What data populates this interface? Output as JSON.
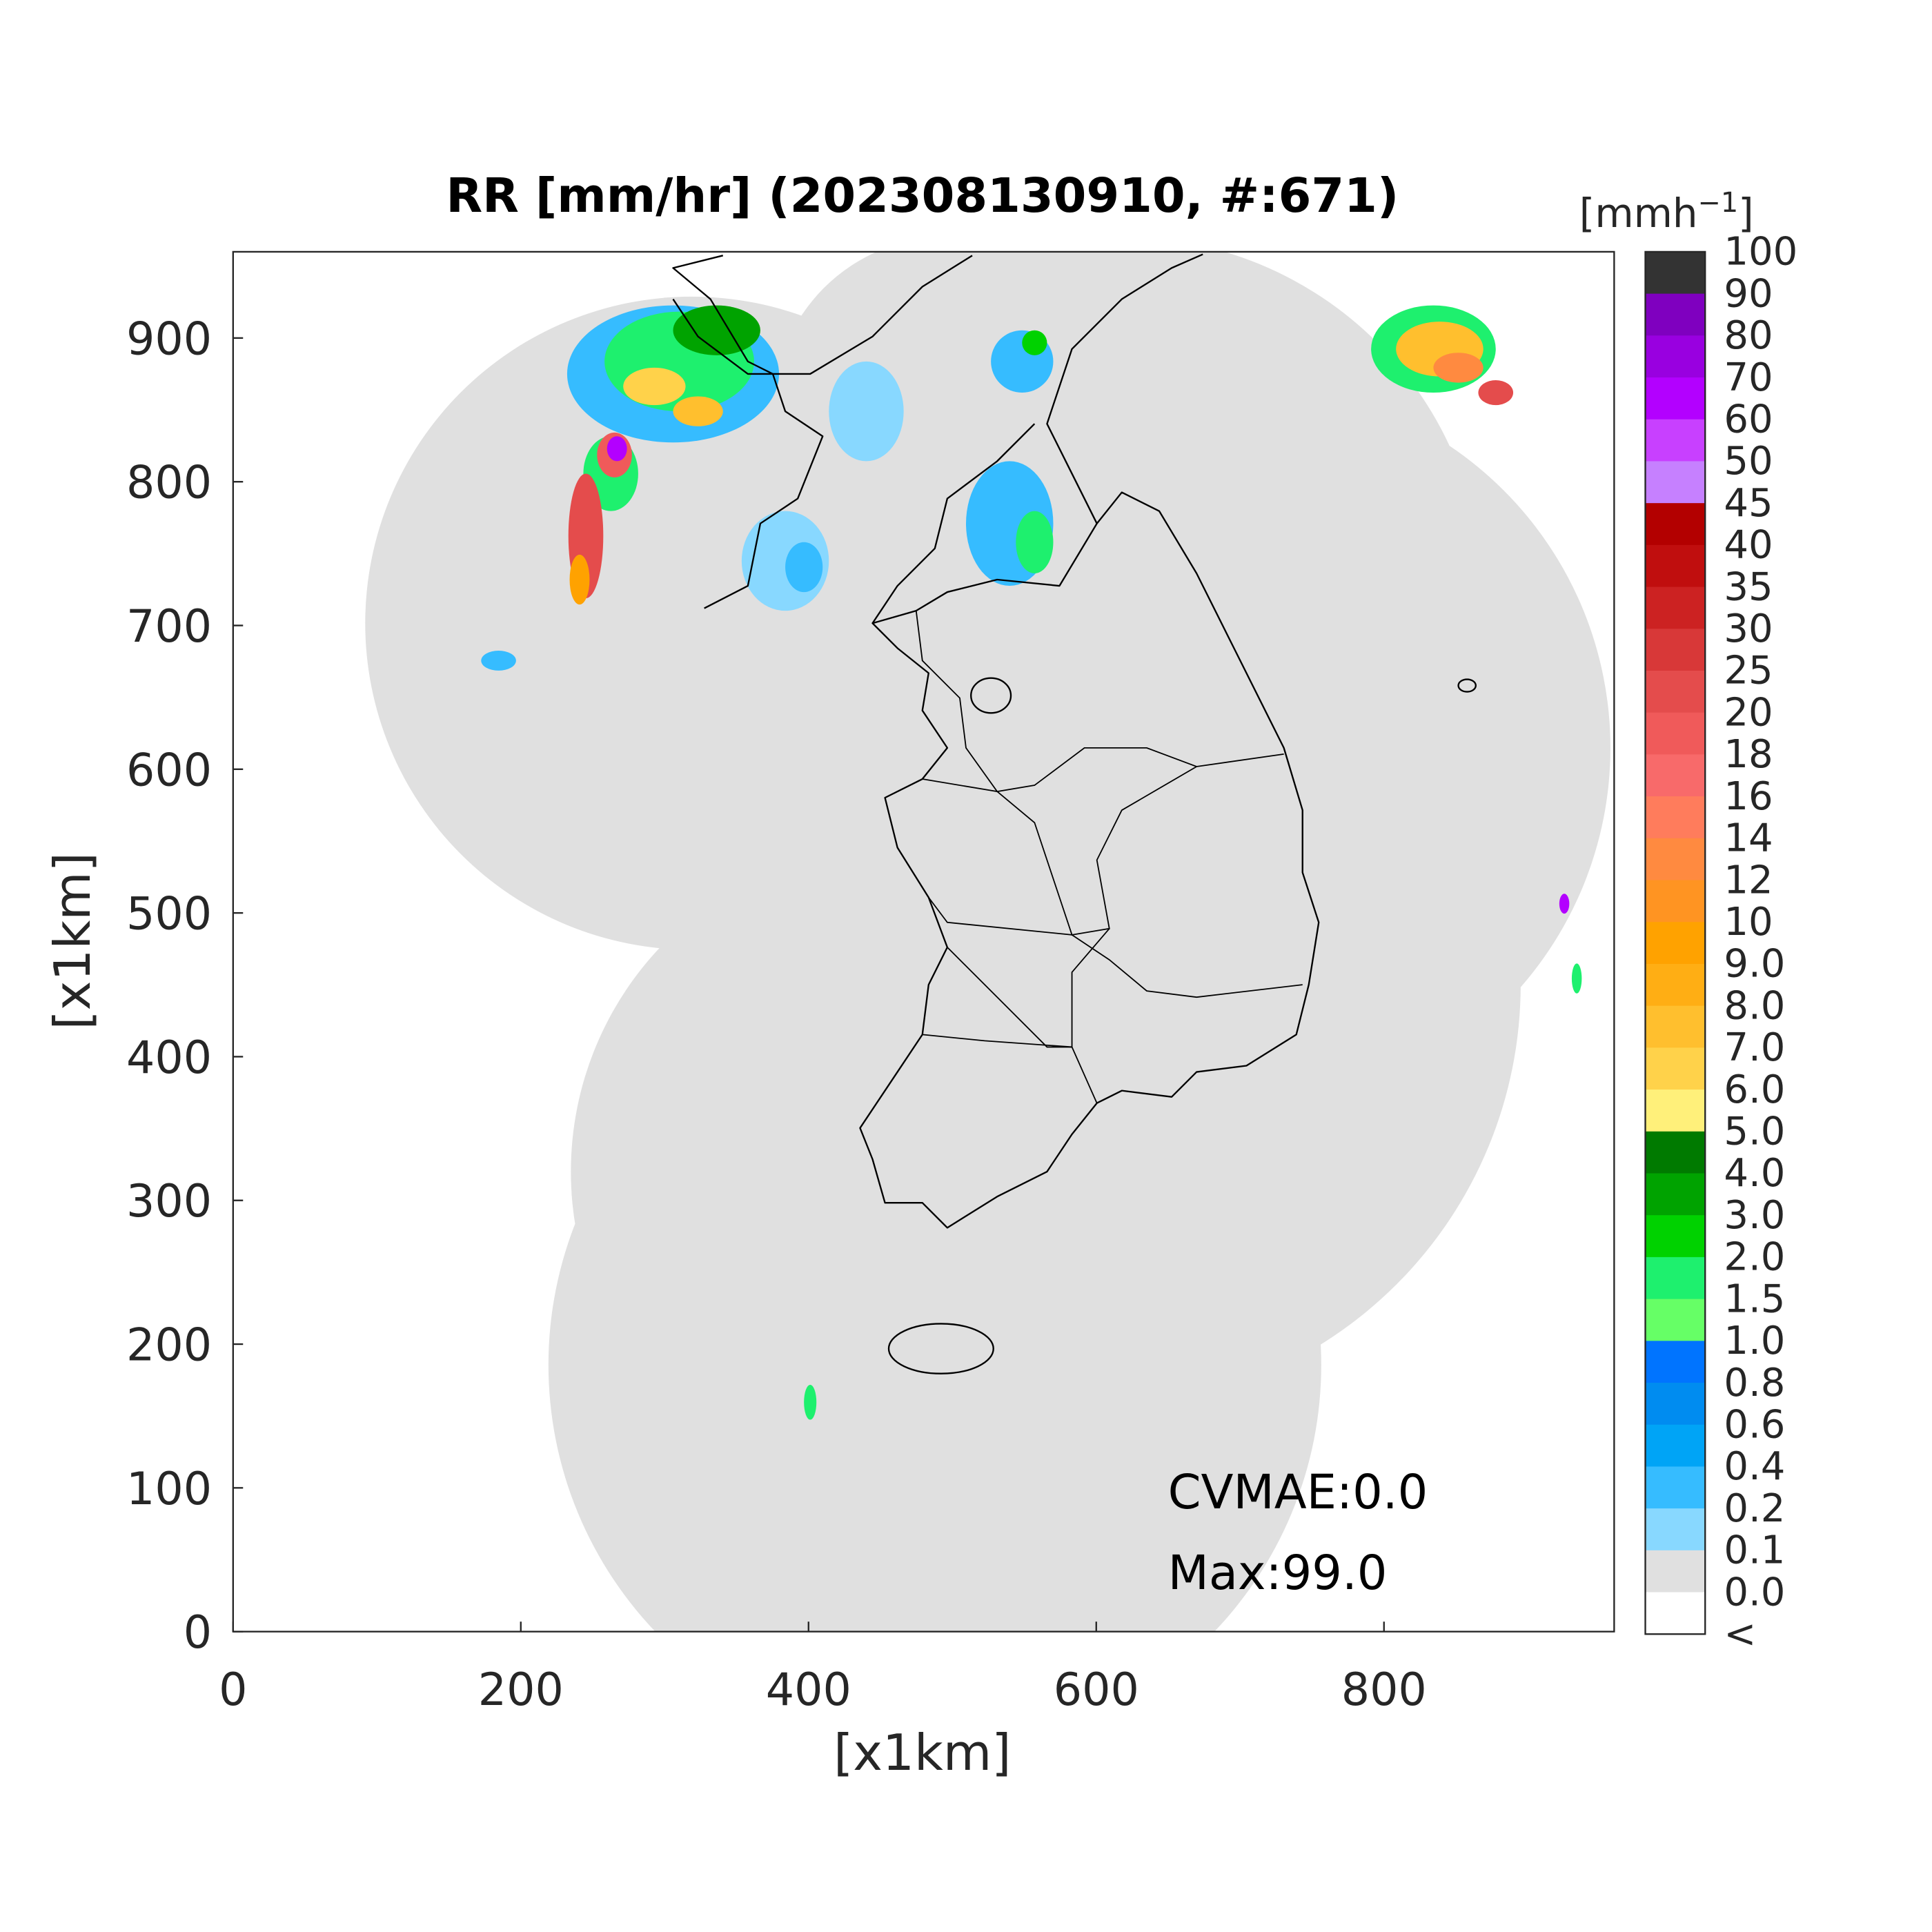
{
  "map": {
    "title": "RR [mm/hr] (202308130910, #:671)",
    "xlabel": "[x1km]",
    "ylabel": "[x1km]",
    "xlim": [
      0,
      960
    ],
    "ylim": [
      0,
      960
    ],
    "xticks": [
      0,
      200,
      400,
      600,
      800
    ],
    "yticks": [
      0,
      100,
      200,
      300,
      400,
      500,
      600,
      700,
      800,
      900
    ],
    "annotations": [
      "CVMAE:0.0",
      "Max:99.0"
    ],
    "colorbar": {
      "unit_base": "[mmh",
      "unit_exponent": "−1",
      "unit_close": "]",
      "labels": [
        "100",
        "90",
        "80",
        "70",
        "60",
        "50",
        "45",
        "40",
        "35",
        "30",
        "25",
        "20",
        "18",
        "16",
        "14",
        "12",
        "10",
        "9.0",
        "8.0",
        "7.0",
        "6.0",
        "5.0",
        "4.0",
        "3.0",
        "2.0",
        "1.5",
        "1.0",
        "0.8",
        "0.6",
        "0.4",
        "0.2",
        "0.1",
        "0.0",
        "<"
      ],
      "colors": [
        "#333333",
        "#7f00bf",
        "#9900e0",
        "#b300ff",
        "#c840ff",
        "#c680ff",
        "#b30000",
        "#c00e0e",
        "#cc2222",
        "#d83838",
        "#e44c4c",
        "#f05a5a",
        "#f86a6a",
        "#ff7c5c",
        "#ff8a40",
        "#ff9422",
        "#ffa200",
        "#ffae14",
        "#ffbf2e",
        "#ffd24a",
        "#fff07a",
        "#007a00",
        "#00a300",
        "#00d200",
        "#1ef06e",
        "#66ff66",
        "#0074ff",
        "#008cf0",
        "#00a4f6",
        "#36bcff",
        "#88d8ff",
        "#e0e0e0",
        "#ffffff"
      ]
    }
  }
}
